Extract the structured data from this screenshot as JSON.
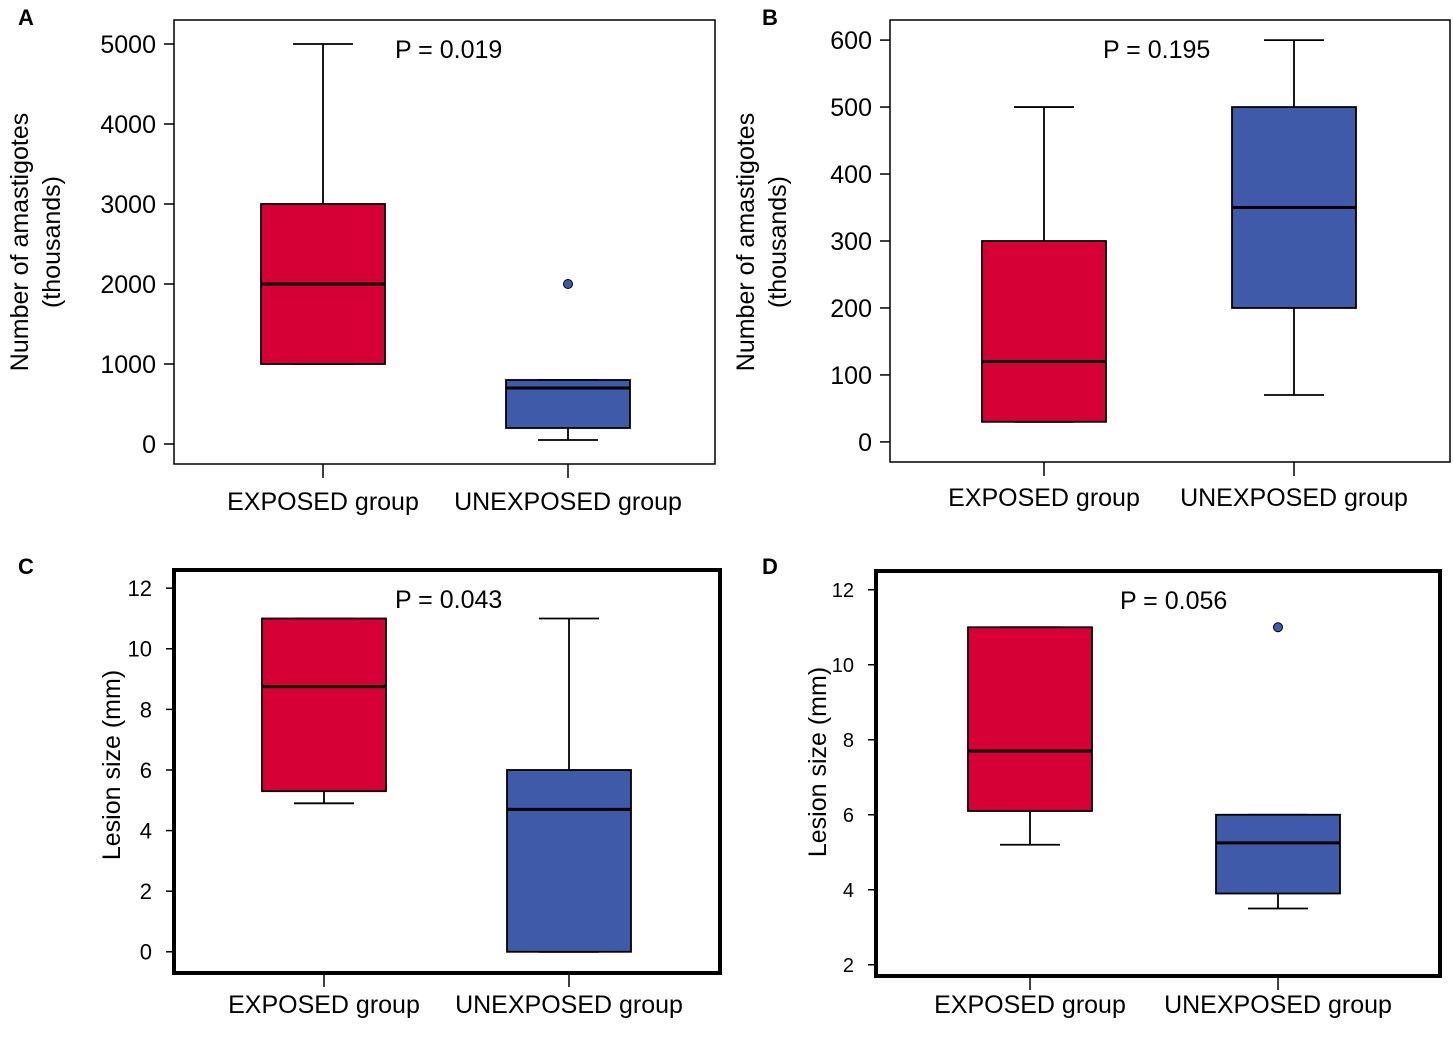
{
  "colors": {
    "exposed": "#d70036",
    "unexposed": "#3f5aa8",
    "outlier": "#3f5aa8"
  },
  "chart_data": [
    {
      "panel": "A",
      "type": "boxplot",
      "categories": [
        "EXPOSED group",
        "UNEXPOSED group"
      ],
      "ylabel_lines": [
        "Number of amastigotes",
        "(thousands)"
      ],
      "annotation": "P = 0.019",
      "ylim": [
        -250,
        5300
      ],
      "yticks": [
        0,
        1000,
        2000,
        3000,
        4000,
        5000
      ],
      "ytick_labels": [
        "0",
        "1000",
        "2000",
        "3000",
        "4000",
        "5000"
      ],
      "boxes": [
        {
          "min": 1000,
          "q1": 1000,
          "median": 2000,
          "q3": 3000,
          "max": 5000,
          "outliers": []
        },
        {
          "min": 50,
          "q1": 200,
          "median": 700,
          "q3": 800,
          "max": 800,
          "outliers": [
            2000
          ]
        }
      ]
    },
    {
      "panel": "B",
      "type": "boxplot",
      "categories": [
        "EXPOSED group",
        "UNEXPOSED group"
      ],
      "ylabel_lines": [
        "Number of amastigotes",
        "(thousands)"
      ],
      "annotation": "P = 0.195",
      "ylim": [
        -30,
        630
      ],
      "yticks": [
        0,
        100,
        200,
        300,
        400,
        500,
        600
      ],
      "ytick_labels": [
        "0",
        "100",
        "200",
        "300",
        "400",
        "500",
        "600"
      ],
      "boxes": [
        {
          "min": 30,
          "q1": 30,
          "median": 120,
          "q3": 300,
          "max": 500,
          "outliers": []
        },
        {
          "min": 70,
          "q1": 200,
          "median": 350,
          "q3": 500,
          "max": 600,
          "outliers": []
        }
      ]
    },
    {
      "panel": "C",
      "type": "boxplot",
      "categories": [
        "EXPOSED group",
        "UNEXPOSED group"
      ],
      "ylabel_lines": [
        "Lesion size (mm)"
      ],
      "annotation": "P = 0.043",
      "ylim": [
        -0.7,
        12.6
      ],
      "yticks": [
        0,
        2,
        4,
        6,
        8,
        10,
        12
      ],
      "ytick_labels": [
        "0",
        "2",
        "4",
        "6",
        "8",
        "10",
        "12"
      ],
      "boxes": [
        {
          "min": 4.9,
          "q1": 5.3,
          "median": 8.75,
          "q3": 11.0,
          "max": 11.0,
          "outliers": []
        },
        {
          "min": 0.0,
          "q1": 0.0,
          "median": 4.7,
          "q3": 6.0,
          "max": 11.0,
          "outliers": []
        }
      ]
    },
    {
      "panel": "D",
      "type": "boxplot",
      "categories": [
        "EXPOSED group",
        "UNEXPOSED group"
      ],
      "ylabel_lines": [
        "Lesion size (mm)"
      ],
      "annotation": "P = 0.056",
      "ylim": [
        1.7,
        12.5
      ],
      "yticks": [
        2,
        4,
        6,
        8,
        10,
        12
      ],
      "ytick_labels": [
        "2",
        "4",
        "6",
        "8",
        "10",
        "12"
      ],
      "boxes": [
        {
          "min": 5.2,
          "q1": 6.1,
          "median": 7.7,
          "q3": 11.0,
          "max": 11.0,
          "outliers": []
        },
        {
          "min": 3.5,
          "q1": 3.9,
          "median": 5.25,
          "q3": 6.0,
          "max": 6.0,
          "outliers": [
            11.0
          ]
        }
      ]
    }
  ]
}
